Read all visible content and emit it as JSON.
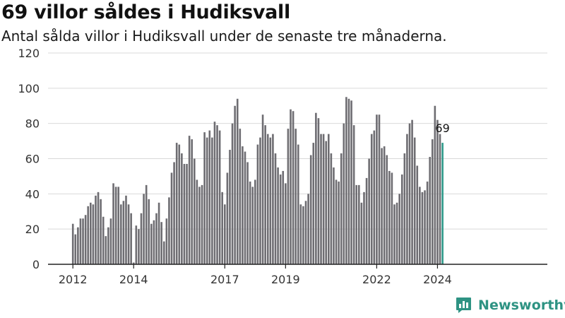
{
  "title": "69 villor såldes i Hudiksvall",
  "subtitle": "Antal sålda villor i Hudiksvall under de senaste tre månaderna.",
  "brand": "Newsworthy",
  "colors": {
    "bar": "#6e6d72",
    "highlight": "#2e9a8a",
    "grid": "#d9d9d9",
    "axis": "#222222",
    "text": "#333333",
    "brand": "#2e9383"
  },
  "chart_data": {
    "type": "bar",
    "title": "69 villor såldes i Hudiksvall",
    "subtitle": "Antal sålda villor i Hudiksvall under de senaste tre månaderna.",
    "xlabel": "",
    "ylabel": "",
    "ylim": [
      0,
      120
    ],
    "yticks": [
      0,
      20,
      40,
      60,
      80,
      100,
      120
    ],
    "xtick_labels": [
      "2012",
      "2014",
      "2017",
      "2019",
      "2022",
      "2024"
    ],
    "grid": true,
    "highlight": {
      "label": "69",
      "value": 69
    },
    "values": [
      23,
      17,
      21,
      26,
      26,
      28,
      33,
      35,
      34,
      39,
      41,
      37,
      27,
      16,
      21,
      26,
      46,
      44,
      44,
      34,
      36,
      39,
      34,
      29,
      1,
      22,
      20,
      29,
      40,
      45,
      37,
      23,
      25,
      29,
      35,
      24,
      13,
      26,
      38,
      52,
      58,
      69,
      68,
      63,
      57,
      57,
      73,
      71,
      60,
      48,
      44,
      45,
      75,
      72,
      76,
      72,
      81,
      79,
      76,
      41,
      34,
      52,
      65,
      80,
      90,
      94,
      77,
      67,
      64,
      58,
      47,
      44,
      48,
      68,
      72,
      85,
      79,
      74,
      72,
      74,
      63,
      55,
      51,
      53,
      46,
      77,
      88,
      87,
      77,
      68,
      34,
      33,
      36,
      40,
      62,
      69,
      86,
      83,
      74,
      74,
      70,
      74,
      63,
      55,
      48,
      47,
      63,
      80,
      95,
      94,
      93,
      79,
      45,
      45,
      35,
      41,
      49,
      60,
      74,
      76,
      85,
      85,
      66,
      67,
      62,
      53,
      52,
      34,
      35,
      40,
      51,
      63,
      74,
      80,
      82,
      72,
      56,
      44,
      41,
      42,
      47,
      61,
      71,
      90,
      82,
      74,
      69
    ]
  }
}
